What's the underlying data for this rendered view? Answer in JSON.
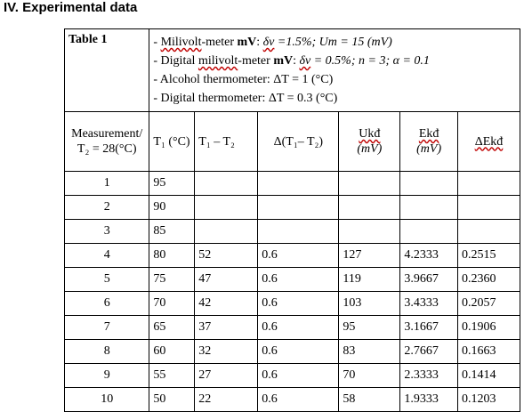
{
  "section_title": "IV. Experimental data",
  "table_label": "Table 1",
  "notes": {
    "n1_prefix": "- ",
    "n1_word": "Milivolt",
    "n1_mid": "-meter ",
    "n1_bold": "mV",
    "n1_colon": ": ",
    "n1_delta": "δv",
    "n1_rest": " =1.5%; Um = 15 (mV)",
    "n2_prefix": "- Digital ",
    "n2_word": "milivolt",
    "n2_mid": "-meter ",
    "n2_bold": "mV",
    "n2_colon": ": ",
    "n2_delta": "δv",
    "n2_rest": " = 0.5%; n = 3; α = 0.1",
    "n3": "- Alcohol thermometer: ΔT = 1 (°C)",
    "n4": "- Digital thermometer: ΔT = 0.3 (°C)"
  },
  "headers": {
    "measurement": "Measurement/ T₂ = 28(°C)",
    "t1": "T₁ (°C)",
    "t1_minus_t2": "T₁ – T₂",
    "delta": "Δ(T₁– T₂)",
    "ukd": "Ukđ",
    "ukd_unit": "(mV)",
    "ekd": "Ekđ",
    "ekd_unit": "(mV)",
    "delta_ekd": "ΔEkđ"
  },
  "rows": [
    {
      "n": "1",
      "t1": "95",
      "diff": "",
      "delta": "",
      "u": "",
      "e": "",
      "de": ""
    },
    {
      "n": "2",
      "t1": "90",
      "diff": "",
      "delta": "",
      "u": "",
      "e": "",
      "de": ""
    },
    {
      "n": "3",
      "t1": "85",
      "diff": "",
      "delta": "",
      "u": "",
      "e": "",
      "de": ""
    },
    {
      "n": "4",
      "t1": "80",
      "diff": "52",
      "delta": "0.6",
      "u": "127",
      "e": "4.2333",
      "de": "0.2515"
    },
    {
      "n": "5",
      "t1": "75",
      "diff": "47",
      "delta": "0.6",
      "u": "119",
      "e": "3.9667",
      "de": "0.2360"
    },
    {
      "n": "6",
      "t1": "70",
      "diff": "42",
      "delta": "0.6",
      "u": "103",
      "e": "3.4333",
      "de": "0.2057"
    },
    {
      "n": "7",
      "t1": "65",
      "diff": "37",
      "delta": "0.6",
      "u": "95",
      "e": "3.1667",
      "de": "0.1906"
    },
    {
      "n": "8",
      "t1": "60",
      "diff": "32",
      "delta": "0.6",
      "u": "83",
      "e": "2.7667",
      "de": "0.1663"
    },
    {
      "n": "9",
      "t1": "55",
      "diff": "27",
      "delta": "0.6",
      "u": "70",
      "e": "2.3333",
      "de": "0.1414"
    },
    {
      "n": "10",
      "t1": "50",
      "diff": "22",
      "delta": "0.6",
      "u": "58",
      "e": "1.9333",
      "de": "0.1203"
    }
  ]
}
